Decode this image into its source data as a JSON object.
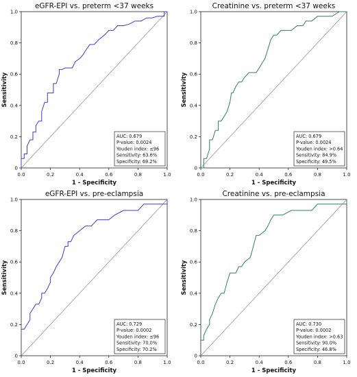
{
  "chart_data": [
    {
      "type": "line",
      "title": "eGFR-EPI vs. preterm <37 weeks",
      "xlabel": "1 - Specificity",
      "ylabel": "Sensitivity",
      "xlim": [
        0,
        1
      ],
      "ylim": [
        0,
        1
      ],
      "x_ticks": [
        "0.0",
        "0.2",
        "0.4",
        "0.6",
        "0.8",
        "1.0"
      ],
      "y_ticks": [
        "0",
        "0.2",
        "0.4",
        "0.6",
        "0.8",
        "1.0"
      ],
      "grid": false,
      "line_color": "#3b3bd9",
      "stats": [
        "AUC: 0.679",
        "P-value: 0.0024",
        "Youden index: ≤96",
        "Sensitivity: 63.6%",
        "Specificity: 69.2%"
      ],
      "series": [
        {
          "x": [
            0,
            0,
            0.02,
            0.02,
            0.04,
            0.04,
            0.06,
            0.08,
            0.08,
            0.1,
            0.1,
            0.12,
            0.14,
            0.14,
            0.16,
            0.18,
            0.18,
            0.2,
            0.22,
            0.22,
            0.24,
            0.26,
            0.26,
            0.28,
            0.3,
            0.31,
            0.33,
            0.35,
            0.37,
            0.4,
            0.42,
            0.44,
            0.47,
            0.5,
            0.53,
            0.57,
            0.6,
            0.63,
            0.66,
            0.7,
            0.74,
            0.78,
            0.82,
            0.86,
            0.9,
            0.93,
            0.96,
            0.98,
            0.98,
            1.0
          ],
          "y": [
            0,
            0.06,
            0.06,
            0.09,
            0.09,
            0.14,
            0.18,
            0.18,
            0.23,
            0.23,
            0.27,
            0.3,
            0.3,
            0.36,
            0.42,
            0.42,
            0.48,
            0.48,
            0.48,
            0.54,
            0.54,
            0.6,
            0.63,
            0.63,
            0.64,
            0.64,
            0.64,
            0.64,
            0.68,
            0.7,
            0.72,
            0.75,
            0.79,
            0.79,
            0.82,
            0.85,
            0.88,
            0.88,
            0.91,
            0.91,
            0.92,
            0.94,
            0.94,
            0.96,
            0.96,
            0.97,
            0.97,
            0.97,
            1.0,
            1.0
          ]
        }
      ]
    },
    {
      "type": "line",
      "title": "Creatinine vs. preterm <37 weeks",
      "xlabel": "1 - Specificity",
      "ylabel": "Sensitivity",
      "xlim": [
        0,
        1
      ],
      "ylim": [
        0,
        1
      ],
      "x_ticks": [
        "0.0",
        "0.2",
        "0.4",
        "0.6",
        "0.8",
        "1.0"
      ],
      "y_ticks": [
        "0",
        "0.2",
        "0.4",
        "0.6",
        "0.8",
        "1.0"
      ],
      "grid": false,
      "line_color": "#2e7d6b",
      "stats": [
        "AUC: 0.679",
        "P-value: 0.0024",
        "Youden index: >0.64",
        "Sensitivity: 84.9%",
        "Specificity: 49.5%"
      ],
      "series": [
        {
          "x": [
            0,
            0.02,
            0.02,
            0.04,
            0.06,
            0.06,
            0.08,
            0.1,
            0.12,
            0.12,
            0.14,
            0.16,
            0.18,
            0.2,
            0.21,
            0.22,
            0.24,
            0.26,
            0.28,
            0.3,
            0.33,
            0.36,
            0.38,
            0.4,
            0.44,
            0.46,
            0.48,
            0.5,
            0.52,
            0.55,
            0.58,
            0.62,
            0.66,
            0.7,
            0.72,
            0.76,
            0.8,
            0.84,
            0.9,
            0.95,
            1.0
          ],
          "y": [
            0,
            0,
            0.06,
            0.06,
            0.12,
            0.18,
            0.18,
            0.24,
            0.24,
            0.3,
            0.3,
            0.33,
            0.36,
            0.42,
            0.48,
            0.48,
            0.52,
            0.55,
            0.55,
            0.58,
            0.61,
            0.61,
            0.61,
            0.64,
            0.7,
            0.76,
            0.82,
            0.85,
            0.85,
            0.88,
            0.88,
            0.88,
            0.91,
            0.91,
            0.94,
            0.94,
            0.97,
            0.97,
            0.97,
            1.0,
            1.0
          ]
        }
      ]
    },
    {
      "type": "line",
      "title": "eGFR-EPI vs. pre-eclampsia",
      "xlabel": "1 - Specificity",
      "ylabel": "Sensitivity",
      "xlim": [
        0,
        1
      ],
      "ylim": [
        0,
        1
      ],
      "x_ticks": [
        "0.0",
        "0.2",
        "0.4",
        "0.6",
        "0.8",
        "1.0"
      ],
      "y_ticks": [
        "0",
        "0.2",
        "0.4",
        "0.6",
        "0.8",
        "1.0"
      ],
      "grid": false,
      "line_color": "#3b3bd9",
      "stats": [
        "AUC: 0.729",
        "P-value: 0.0002",
        "Youden index: ≤96",
        "Sensitivity: 70.0%",
        "Specificity: 70.2%"
      ],
      "series": [
        {
          "x": [
            0,
            0.02,
            0.04,
            0.06,
            0.06,
            0.08,
            0.1,
            0.12,
            0.14,
            0.14,
            0.16,
            0.18,
            0.2,
            0.2,
            0.22,
            0.24,
            0.26,
            0.28,
            0.3,
            0.32,
            0.32,
            0.34,
            0.36,
            0.4,
            0.44,
            0.48,
            0.52,
            0.56,
            0.6,
            0.64,
            0.7,
            0.76,
            0.8,
            0.84,
            0.88,
            0.92,
            0.96,
            1.0,
            1.0
          ],
          "y": [
            0.17,
            0.17,
            0.2,
            0.23,
            0.27,
            0.3,
            0.33,
            0.33,
            0.37,
            0.4,
            0.4,
            0.43,
            0.47,
            0.5,
            0.53,
            0.57,
            0.6,
            0.63,
            0.7,
            0.7,
            0.73,
            0.73,
            0.77,
            0.8,
            0.83,
            0.83,
            0.87,
            0.87,
            0.87,
            0.9,
            0.93,
            0.93,
            0.93,
            0.97,
            0.97,
            0.97,
            0.97,
            0.97,
            1.0
          ]
        }
      ]
    },
    {
      "type": "line",
      "title": "Creatinine vs. pre-eclampsia",
      "xlabel": "1 - Specificity",
      "ylabel": "Sensitivity",
      "xlim": [
        0,
        1
      ],
      "ylim": [
        0,
        1
      ],
      "x_ticks": [
        "0.0",
        "0.2",
        "0.4",
        "0.6",
        "0.8",
        "1.0"
      ],
      "y_ticks": [
        "0",
        "0.2",
        "0.4",
        "0.6",
        "0.8",
        "1.0"
      ],
      "grid": false,
      "line_color": "#2e7d6b",
      "stats": [
        "AUC: 0.730",
        "P-value: 0.0002",
        "Youden index: >0.63",
        "Sensitivity: 90.0%",
        "Specificity: 46.8%"
      ],
      "series": [
        {
          "x": [
            0,
            0.02,
            0.02,
            0.04,
            0.06,
            0.06,
            0.08,
            0.1,
            0.12,
            0.14,
            0.16,
            0.18,
            0.2,
            0.24,
            0.26,
            0.28,
            0.3,
            0.34,
            0.36,
            0.38,
            0.4,
            0.44,
            0.46,
            0.48,
            0.5,
            0.52,
            0.54,
            0.56,
            0.62,
            0.66,
            0.7,
            0.76,
            0.8,
            0.84,
            0.9,
            0.96,
            1.0,
            1.0
          ],
          "y": [
            0.1,
            0.1,
            0.13,
            0.17,
            0.2,
            0.23,
            0.27,
            0.33,
            0.37,
            0.4,
            0.4,
            0.47,
            0.53,
            0.53,
            0.57,
            0.57,
            0.6,
            0.63,
            0.7,
            0.77,
            0.77,
            0.8,
            0.83,
            0.87,
            0.9,
            0.9,
            0.9,
            0.9,
            0.93,
            0.93,
            0.93,
            0.93,
            0.97,
            0.97,
            0.97,
            0.97,
            0.97,
            1.0
          ]
        }
      ]
    }
  ]
}
